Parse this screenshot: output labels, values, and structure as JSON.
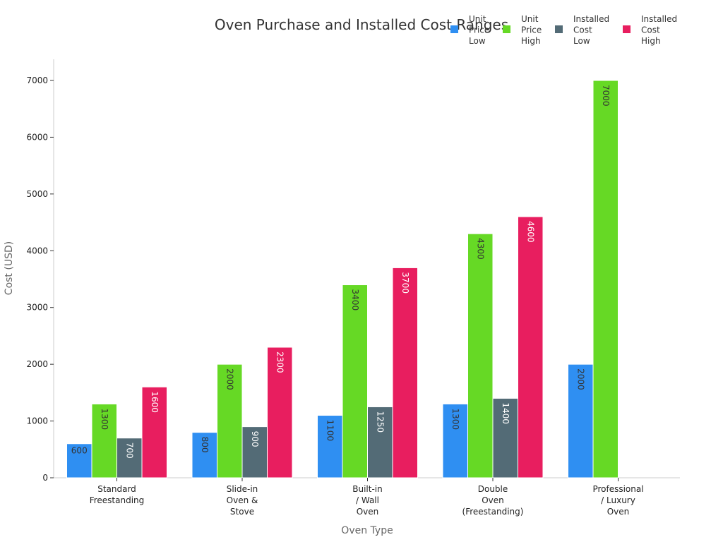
{
  "chart_data": {
    "type": "bar",
    "title": "Oven Purchase and Installed Cost Ranges",
    "xlabel": "Oven Type",
    "ylabel": "Cost (USD)",
    "ylim": [
      0,
      7350
    ],
    "yticks": [
      0,
      1000,
      2000,
      3000,
      4000,
      5000,
      6000,
      7000
    ],
    "grid": false,
    "legend_position": "top-right",
    "categories": [
      [
        "Standard",
        "Freestanding"
      ],
      [
        "Slide-in",
        "Oven &",
        "Stove"
      ],
      [
        "Built-in",
        "/ Wall",
        "Oven"
      ],
      [
        "Double",
        "Oven",
        "(Freestanding)"
      ],
      [
        "Professional",
        "/ Luxury",
        "Oven"
      ]
    ],
    "series": [
      {
        "name": [
          "Unit",
          "Price",
          "Low"
        ],
        "color": "#2f8ff2",
        "label_color": "#333333",
        "values": [
          600,
          800,
          1100,
          1300,
          2000
        ]
      },
      {
        "name": [
          "Unit",
          "Price",
          "High"
        ],
        "color": "#66d925",
        "label_color": "#333333",
        "values": [
          1300,
          2000,
          3400,
          4300,
          7000
        ]
      },
      {
        "name": [
          "Installed",
          "Cost",
          "Low"
        ],
        "color": "#536b76",
        "label_color": "#ffffff",
        "values": [
          700,
          900,
          1250,
          1400,
          null
        ]
      },
      {
        "name": [
          "Installed",
          "Cost",
          "High"
        ],
        "color": "#e81e5f",
        "label_color": "#ffffff",
        "values": [
          1600,
          2300,
          3700,
          4600,
          null
        ]
      }
    ]
  }
}
